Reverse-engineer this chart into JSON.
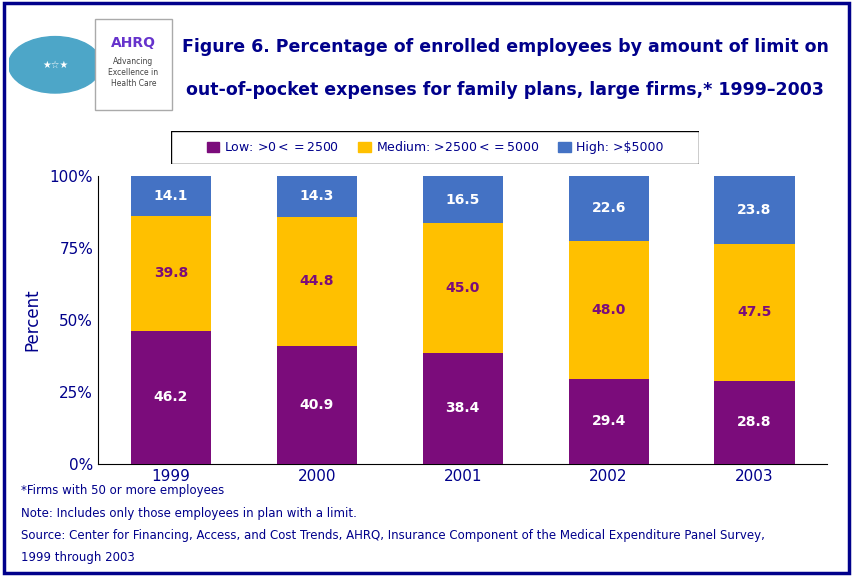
{
  "years": [
    "1999",
    "2000",
    "2001",
    "2002",
    "2003"
  ],
  "low": [
    46.2,
    40.9,
    38.4,
    29.4,
    28.8
  ],
  "medium": [
    39.8,
    44.8,
    45.0,
    48.0,
    47.5
  ],
  "high": [
    14.1,
    14.3,
    16.5,
    22.6,
    23.8
  ],
  "low_color": "#7B0C7B",
  "medium_color": "#FFC000",
  "high_color": "#4472C4",
  "low_label": "Low: >$0<=$2500",
  "medium_label": "Medium: >$2500<=$5000",
  "high_label": "High: >$5000",
  "title_line1": "Figure 6. Percentage of enrolled employees by amount of limit on",
  "title_line2": "out-of-pocket expenses for family plans, large firms,* 1999–2003",
  "ylabel": "Percent",
  "yticks": [
    0,
    25,
    50,
    75,
    100
  ],
  "yticklabels": [
    "0%",
    "25%",
    "50%",
    "75%",
    "100%"
  ],
  "footnote1": "*Firms with 50 or more employees",
  "footnote2": "Note: Includes only those employees in plan with a limit.",
  "footnote3": "Source: Center for Financing, Access, and Cost Trends, AHRQ, Insurance Component of the Medical Expenditure Panel Survey,",
  "footnote4": "1999 through 2003",
  "bg_color": "#FFFFFF",
  "outer_border_color": "#00008B",
  "navy": "#00008B",
  "bar_width": 0.55,
  "label_color_low": "#FFFFFF",
  "label_color_medium": "#7B0C7B",
  "label_color_high": "#FFFFFF",
  "text_color_footnote": "#00008B",
  "tick_label_color": "#00008B"
}
